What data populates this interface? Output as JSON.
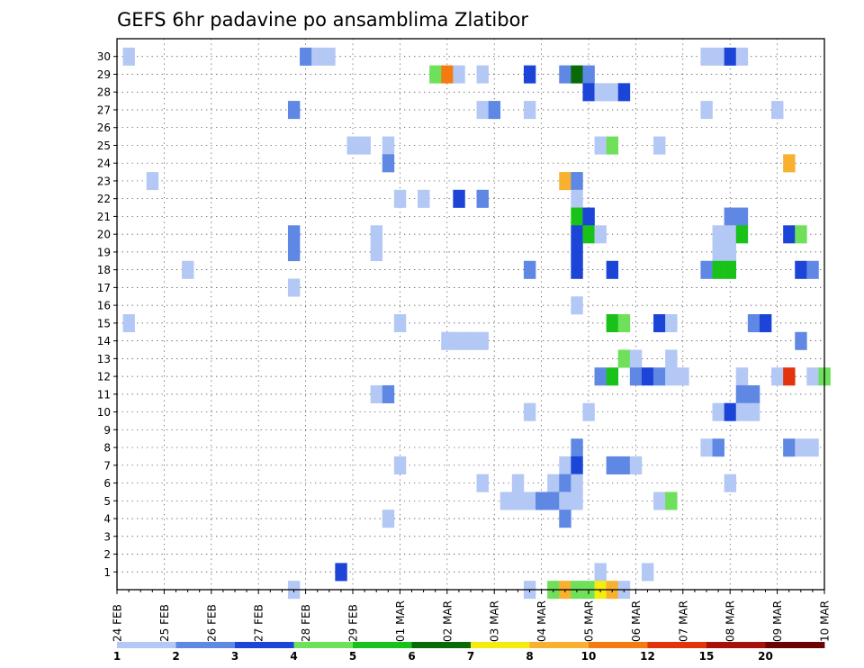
{
  "chart_data": {
    "type": "heatmap",
    "title": "GEFS 6hr padavine po ansamblima Zlatibor",
    "xlabel": "",
    "ylabel": "",
    "x_tick_labels": [
      "24 FEB",
      "25 FEB",
      "26 FEB",
      "27 FEB",
      "28 FEB",
      "29 FEB",
      "01 MAR",
      "02 MAR",
      "03 MAR",
      "04 MAR",
      "05 MAR",
      "06 MAR",
      "07 MAR",
      "08 MAR",
      "09 MAR",
      "10 MAR"
    ],
    "x_step_label": "6hr",
    "y_tick_labels": [
      "1",
      "2",
      "3",
      "4",
      "5",
      "6",
      "7",
      "8",
      "9",
      "10",
      "11",
      "12",
      "13",
      "14",
      "15",
      "16",
      "17",
      "18",
      "19",
      "20",
      "21",
      "22",
      "23",
      "24",
      "25",
      "26",
      "27",
      "28",
      "29",
      "30"
    ],
    "grid": true,
    "colorbar": {
      "labels": [
        "1",
        "2",
        "3",
        "4",
        "5",
        "6",
        "7",
        "8",
        "10",
        "12",
        "15",
        "20"
      ],
      "colors": [
        "#b4c8f5",
        "#5f87e4",
        "#1c45d8",
        "#6fe05a",
        "#19c219",
        "#0a6a0a",
        "#f3ec0c",
        "#f7b12e",
        "#f57b10",
        "#e2330c",
        "#a8100b",
        "#6a0505"
      ]
    },
    "cells": [
      {
        "step": 1,
        "member": 30,
        "level": 1
      },
      {
        "step": 16,
        "member": 30,
        "level": 2
      },
      {
        "step": 17,
        "member": 30,
        "level": 1
      },
      {
        "step": 18,
        "member": 30,
        "level": 1
      },
      {
        "step": 50,
        "member": 30,
        "level": 1
      },
      {
        "step": 51,
        "member": 30,
        "level": 1
      },
      {
        "step": 52,
        "member": 30,
        "level": 3
      },
      {
        "step": 53,
        "member": 30,
        "level": 1
      },
      {
        "step": 27,
        "member": 29,
        "level": 4
      },
      {
        "step": 28,
        "member": 29,
        "level": 9
      },
      {
        "step": 29,
        "member": 29,
        "level": 1
      },
      {
        "step": 31,
        "member": 29,
        "level": 1
      },
      {
        "step": 35,
        "member": 29,
        "level": 3
      },
      {
        "step": 38,
        "member": 29,
        "level": 2
      },
      {
        "step": 39,
        "member": 29,
        "level": 6
      },
      {
        "step": 40,
        "member": 29,
        "level": 2
      },
      {
        "step": 40,
        "member": 28,
        "level": 3
      },
      {
        "step": 41,
        "member": 28,
        "level": 1
      },
      {
        "step": 42,
        "member": 28,
        "level": 1
      },
      {
        "step": 43,
        "member": 28,
        "level": 3
      },
      {
        "step": 15,
        "member": 27,
        "level": 2
      },
      {
        "step": 31,
        "member": 27,
        "level": 1
      },
      {
        "step": 32,
        "member": 27,
        "level": 2
      },
      {
        "step": 35,
        "member": 27,
        "level": 1
      },
      {
        "step": 50,
        "member": 27,
        "level": 1
      },
      {
        "step": 56,
        "member": 27,
        "level": 1
      },
      {
        "step": 20,
        "member": 25,
        "level": 1
      },
      {
        "step": 21,
        "member": 25,
        "level": 1
      },
      {
        "step": 23,
        "member": 25,
        "level": 1
      },
      {
        "step": 41,
        "member": 25,
        "level": 1
      },
      {
        "step": 42,
        "member": 25,
        "level": 4
      },
      {
        "step": 46,
        "member": 25,
        "level": 1
      },
      {
        "step": 23,
        "member": 24,
        "level": 2
      },
      {
        "step": 57,
        "member": 24,
        "level": 8
      },
      {
        "step": 3,
        "member": 23,
        "level": 1
      },
      {
        "step": 38,
        "member": 23,
        "level": 8
      },
      {
        "step": 39,
        "member": 23,
        "level": 2
      },
      {
        "step": 24,
        "member": 22,
        "level": 1
      },
      {
        "step": 26,
        "member": 22,
        "level": 1
      },
      {
        "step": 29,
        "member": 22,
        "level": 3
      },
      {
        "step": 31,
        "member": 22,
        "level": 2
      },
      {
        "step": 39,
        "member": 22,
        "level": 1
      },
      {
        "step": 39,
        "member": 21,
        "level": 5
      },
      {
        "step": 40,
        "member": 21,
        "level": 3
      },
      {
        "step": 52,
        "member": 21,
        "level": 2
      },
      {
        "step": 53,
        "member": 21,
        "level": 2
      },
      {
        "step": 15,
        "member": 20,
        "level": 2
      },
      {
        "step": 22,
        "member": 20,
        "level": 1
      },
      {
        "step": 39,
        "member": 20,
        "level": 3
      },
      {
        "step": 40,
        "member": 20,
        "level": 5
      },
      {
        "step": 41,
        "member": 20,
        "level": 1
      },
      {
        "step": 51,
        "member": 20,
        "level": 1
      },
      {
        "step": 52,
        "member": 20,
        "level": 1
      },
      {
        "step": 53,
        "member": 20,
        "level": 5
      },
      {
        "step": 57,
        "member": 20,
        "level": 3
      },
      {
        "step": 58,
        "member": 20,
        "level": 4
      },
      {
        "step": 15,
        "member": 19,
        "level": 2
      },
      {
        "step": 22,
        "member": 19,
        "level": 1
      },
      {
        "step": 39,
        "member": 19,
        "level": 3
      },
      {
        "step": 51,
        "member": 19,
        "level": 1
      },
      {
        "step": 52,
        "member": 19,
        "level": 1
      },
      {
        "step": 6,
        "member": 18,
        "level": 1
      },
      {
        "step": 35,
        "member": 18,
        "level": 2
      },
      {
        "step": 39,
        "member": 18,
        "level": 3
      },
      {
        "step": 42,
        "member": 18,
        "level": 3
      },
      {
        "step": 50,
        "member": 18,
        "level": 2
      },
      {
        "step": 51,
        "member": 18,
        "level": 5
      },
      {
        "step": 52,
        "member": 18,
        "level": 5
      },
      {
        "step": 58,
        "member": 18,
        "level": 3
      },
      {
        "step": 59,
        "member": 18,
        "level": 2
      },
      {
        "step": 15,
        "member": 17,
        "level": 1
      },
      {
        "step": 39,
        "member": 16,
        "level": 1
      },
      {
        "step": 1,
        "member": 15,
        "level": 1
      },
      {
        "step": 24,
        "member": 15,
        "level": 1
      },
      {
        "step": 42,
        "member": 15,
        "level": 5
      },
      {
        "step": 43,
        "member": 15,
        "level": 4
      },
      {
        "step": 46,
        "member": 15,
        "level": 3
      },
      {
        "step": 47,
        "member": 15,
        "level": 1
      },
      {
        "step": 54,
        "member": 15,
        "level": 2
      },
      {
        "step": 55,
        "member": 15,
        "level": 3
      },
      {
        "step": 28,
        "member": 14,
        "level": 1
      },
      {
        "step": 29,
        "member": 14,
        "level": 1
      },
      {
        "step": 30,
        "member": 14,
        "level": 1
      },
      {
        "step": 31,
        "member": 14,
        "level": 1
      },
      {
        "step": 58,
        "member": 14,
        "level": 2
      },
      {
        "step": 43,
        "member": 13,
        "level": 4
      },
      {
        "step": 44,
        "member": 13,
        "level": 1
      },
      {
        "step": 47,
        "member": 13,
        "level": 1
      },
      {
        "step": 41,
        "member": 12,
        "level": 2
      },
      {
        "step": 42,
        "member": 12,
        "level": 5
      },
      {
        "step": 44,
        "member": 12,
        "level": 2
      },
      {
        "step": 45,
        "member": 12,
        "level": 3
      },
      {
        "step": 46,
        "member": 12,
        "level": 2
      },
      {
        "step": 47,
        "member": 12,
        "level": 1
      },
      {
        "step": 48,
        "member": 12,
        "level": 1
      },
      {
        "step": 53,
        "member": 12,
        "level": 1
      },
      {
        "step": 56,
        "member": 12,
        "level": 1
      },
      {
        "step": 57,
        "member": 12,
        "level": 10
      },
      {
        "step": 59,
        "member": 12,
        "level": 1
      },
      {
        "step": 60,
        "member": 12,
        "level": 4
      },
      {
        "step": 22,
        "member": 11,
        "level": 1
      },
      {
        "step": 23,
        "member": 11,
        "level": 2
      },
      {
        "step": 53,
        "member": 11,
        "level": 2
      },
      {
        "step": 54,
        "member": 11,
        "level": 2
      },
      {
        "step": 35,
        "member": 10,
        "level": 1
      },
      {
        "step": 40,
        "member": 10,
        "level": 1
      },
      {
        "step": 51,
        "member": 10,
        "level": 1
      },
      {
        "step": 52,
        "member": 10,
        "level": 3
      },
      {
        "step": 53,
        "member": 10,
        "level": 1
      },
      {
        "step": 54,
        "member": 10,
        "level": 1
      },
      {
        "step": 39,
        "member": 8,
        "level": 2
      },
      {
        "step": 50,
        "member": 8,
        "level": 1
      },
      {
        "step": 51,
        "member": 8,
        "level": 2
      },
      {
        "step": 57,
        "member": 8,
        "level": 2
      },
      {
        "step": 58,
        "member": 8,
        "level": 1
      },
      {
        "step": 59,
        "member": 8,
        "level": 1
      },
      {
        "step": 24,
        "member": 7,
        "level": 1
      },
      {
        "step": 38,
        "member": 7,
        "level": 1
      },
      {
        "step": 39,
        "member": 7,
        "level": 3
      },
      {
        "step": 42,
        "member": 7,
        "level": 2
      },
      {
        "step": 43,
        "member": 7,
        "level": 2
      },
      {
        "step": 44,
        "member": 7,
        "level": 1
      },
      {
        "step": 31,
        "member": 6,
        "level": 1
      },
      {
        "step": 34,
        "member": 6,
        "level": 1
      },
      {
        "step": 37,
        "member": 6,
        "level": 1
      },
      {
        "step": 38,
        "member": 6,
        "level": 2
      },
      {
        "step": 39,
        "member": 6,
        "level": 1
      },
      {
        "step": 52,
        "member": 6,
        "level": 1
      },
      {
        "step": 33,
        "member": 5,
        "level": 1
      },
      {
        "step": 34,
        "member": 5,
        "level": 1
      },
      {
        "step": 35,
        "member": 5,
        "level": 1
      },
      {
        "step": 36,
        "member": 5,
        "level": 2
      },
      {
        "step": 37,
        "member": 5,
        "level": 2
      },
      {
        "step": 38,
        "member": 5,
        "level": 1
      },
      {
        "step": 39,
        "member": 5,
        "level": 1
      },
      {
        "step": 46,
        "member": 5,
        "level": 1
      },
      {
        "step": 47,
        "member": 5,
        "level": 4
      },
      {
        "step": 23,
        "member": 4,
        "level": 1
      },
      {
        "step": 38,
        "member": 4,
        "level": 2
      },
      {
        "step": 41,
        "member": 1,
        "level": 1
      },
      {
        "step": 45,
        "member": 1,
        "level": 1
      },
      {
        "step": 19,
        "member": 1,
        "level": 3
      },
      {
        "step": 15,
        "member": 0,
        "level": 1
      },
      {
        "step": 35,
        "member": 0,
        "level": 1
      },
      {
        "step": 37,
        "member": 0,
        "level": 4
      },
      {
        "step": 38,
        "member": 0,
        "level": 8
      },
      {
        "step": 39,
        "member": 0,
        "level": 4
      },
      {
        "step": 40,
        "member": 0,
        "level": 4
      },
      {
        "step": 41,
        "member": 0,
        "level": 7
      },
      {
        "step": 42,
        "member": 0,
        "level": 8
      },
      {
        "step": 43,
        "member": 0,
        "level": 1
      }
    ]
  }
}
